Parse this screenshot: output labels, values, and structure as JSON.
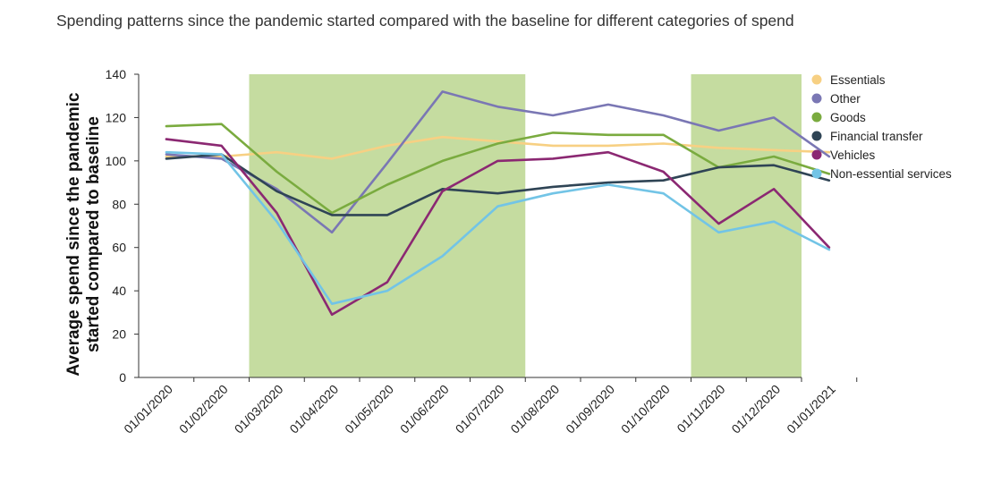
{
  "chart_data": {
    "type": "line",
    "title": "Spending patterns since the pandemic started compared with the baseline for different categories of spend",
    "ylabel_lines": [
      "Average spend since the pandemic",
      "started compared to baseline"
    ],
    "xlabel": "",
    "ylim": [
      0,
      140
    ],
    "yticks": [
      "0",
      "20",
      "40",
      "60",
      "80",
      "100",
      "120",
      "140"
    ],
    "categories": [
      "01/01/2020",
      "01/02/2020",
      "01/03/2020",
      "01/04/2020",
      "01/05/2020",
      "01/06/2020",
      "01/07/2020",
      "01/08/2020",
      "01/09/2020",
      "01/10/2020",
      "01/11/2020",
      "01/12/2020",
      "01/01/2021"
    ],
    "shaded_periods": [
      {
        "from": "01/03/2020",
        "to": "01/07/2020"
      },
      {
        "from": "01/11/2020",
        "to": "01/12/2020"
      },
      {
        "from": "01/01/2021",
        "to": "01/01/2021"
      }
    ],
    "shade_color": "#c5dca0",
    "grid": false,
    "legend_position": "right",
    "series": [
      {
        "name": "Essentials",
        "color": "#f7d083",
        "values": [
          102,
          102,
          104,
          101,
          107,
          111,
          109,
          107,
          107,
          108,
          106,
          105,
          104
        ]
      },
      {
        "name": "Other",
        "color": "#7a77b4",
        "values": [
          103,
          101,
          87,
          67,
          99,
          132,
          125,
          121,
          126,
          121,
          114,
          120,
          102
        ]
      },
      {
        "name": "Goods",
        "color": "#7aab3f",
        "values": [
          116,
          117,
          95,
          76,
          89,
          100,
          108,
          113,
          112,
          112,
          97,
          102,
          94
        ]
      },
      {
        "name": "Financial transfer",
        "color": "#2f4455",
        "values": [
          101,
          103,
          86,
          75,
          75,
          87,
          85,
          88,
          90,
          91,
          97,
          98,
          91
        ]
      },
      {
        "name": "Vehicles",
        "color": "#8b2872",
        "values": [
          110,
          107,
          76,
          29,
          44,
          86,
          100,
          101,
          104,
          95,
          71,
          87,
          60
        ]
      },
      {
        "name": "Non-essential services",
        "color": "#72c4e6",
        "values": [
          104,
          103,
          72,
          34,
          40,
          56,
          79,
          85,
          89,
          85,
          67,
          72,
          59
        ]
      }
    ]
  }
}
